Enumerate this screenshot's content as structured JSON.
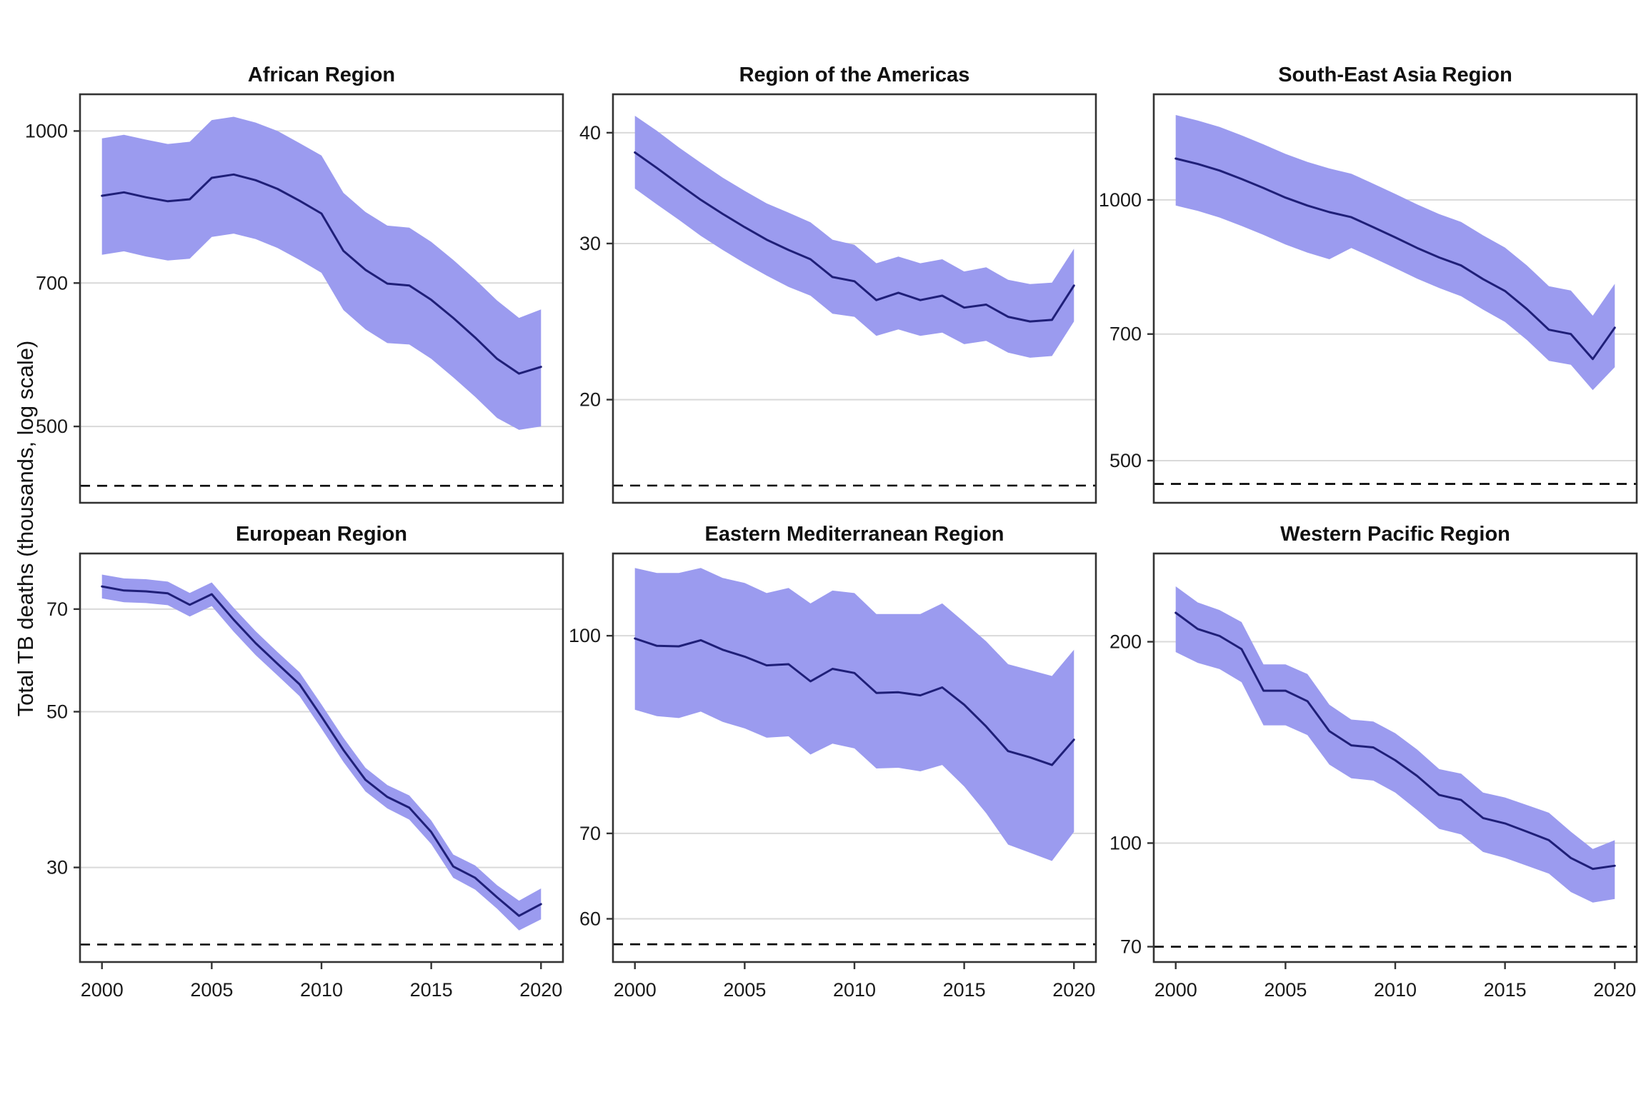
{
  "figure": {
    "y_axis_title": "Total TB deaths (thousands, log scale)",
    "colors": {
      "ribbon": "#9b9bef",
      "trend_line": "#1f1f78",
      "gridline": "#d9d9d9",
      "panel_border": "#333333",
      "target_line": "#000000",
      "tick_text": "#1a1a1a"
    }
  },
  "chart_data": [
    {
      "type": "line",
      "title": "African Region",
      "y_scale": "log10",
      "x": [
        2000,
        2001,
        2002,
        2003,
        2004,
        2005,
        2006,
        2007,
        2008,
        2009,
        2010,
        2011,
        2012,
        2013,
        2014,
        2015,
        2016,
        2017,
        2018,
        2019,
        2020
      ],
      "x_ticks": [
        2000,
        2005,
        2010,
        2015,
        2020
      ],
      "x_labels_shown": false,
      "y_ticks": [
        500,
        700,
        1000
      ],
      "ylim": [
        418,
        1090
      ],
      "target_line_value": 435,
      "series": [
        {
          "name": "central estimate",
          "values": [
            859,
            866,
            856,
            848,
            852,
            896,
            903,
            891,
            873,
            849,
            824,
            755,
            722,
            699,
            696,
            673,
            645,
            616,
            586,
            566,
            575
          ]
        },
        {
          "name": "upper uncertainty bound",
          "values": [
            983,
            991,
            980,
            970,
            975,
            1026,
            1034,
            1020,
            1000,
            972,
            944,
            865,
            827,
            801,
            797,
            771,
            739,
            706,
            672,
            645,
            658
          ]
        },
        {
          "name": "lower uncertainty bound",
          "values": [
            748,
            754,
            745,
            738,
            741,
            780,
            786,
            776,
            760,
            739,
            717,
            657,
            628,
            608,
            606,
            586,
            561,
            536,
            510,
            496,
            500
          ]
        }
      ]
    },
    {
      "type": "line",
      "title": "Region of the Americas",
      "y_scale": "log10",
      "x": [
        2000,
        2001,
        2002,
        2003,
        2004,
        2005,
        2006,
        2007,
        2008,
        2009,
        2010,
        2011,
        2012,
        2013,
        2014,
        2015,
        2016,
        2017,
        2018,
        2019,
        2020
      ],
      "x_ticks": [
        2000,
        2005,
        2010,
        2015,
        2020
      ],
      "x_labels_shown": false,
      "y_ticks": [
        20,
        30,
        40
      ],
      "ylim": [
        15.3,
        44.2
      ],
      "target_line_value": 16,
      "series": [
        {
          "name": "central estimate",
          "values": [
            38.0,
            36.5,
            35.0,
            33.6,
            32.4,
            31.3,
            30.3,
            29.5,
            28.8,
            27.5,
            27.2,
            25.9,
            26.4,
            25.9,
            26.2,
            25.4,
            25.6,
            24.8,
            24.5,
            24.6,
            26.9
          ]
        },
        {
          "name": "upper uncertainty bound",
          "values": [
            41.8,
            40.2,
            38.5,
            37.0,
            35.6,
            34.4,
            33.3,
            32.5,
            31.7,
            30.3,
            29.9,
            28.5,
            29.0,
            28.5,
            28.8,
            27.9,
            28.2,
            27.3,
            27.0,
            27.1,
            29.6
          ]
        },
        {
          "name": "lower uncertainty bound",
          "values": [
            34.6,
            33.2,
            31.9,
            30.6,
            29.5,
            28.5,
            27.6,
            26.8,
            26.2,
            25.0,
            24.8,
            23.6,
            24.0,
            23.6,
            23.8,
            23.1,
            23.3,
            22.6,
            22.3,
            22.4,
            24.5
          ]
        }
      ]
    },
    {
      "type": "line",
      "title": "South-East Asia Region",
      "y_scale": "log10",
      "x": [
        2000,
        2001,
        2002,
        2003,
        2004,
        2005,
        2006,
        2007,
        2008,
        2009,
        2010,
        2011,
        2012,
        2013,
        2014,
        2015,
        2016,
        2017,
        2018,
        2019,
        2020
      ],
      "x_ticks": [
        2000,
        2005,
        2010,
        2015,
        2020
      ],
      "x_labels_shown": false,
      "y_ticks": [
        500,
        700,
        1000
      ],
      "ylim": [
        447,
        1324
      ],
      "target_line_value": 470,
      "series": [
        {
          "name": "central estimate",
          "values": [
            1116,
            1100,
            1081,
            1057,
            1032,
            1006,
            985,
            968,
            955,
            930,
            905,
            880,
            858,
            840,
            810,
            785,
            748,
            708,
            700,
            655,
            712
          ]
        },
        {
          "name": "upper uncertainty bound",
          "values": [
            1253,
            1235,
            1214,
            1187,
            1159,
            1130,
            1106,
            1087,
            1072,
            1044,
            1016,
            988,
            963,
            943,
            910,
            881,
            840,
            795,
            786,
            735,
            800
          ]
        },
        {
          "name": "lower uncertainty bound",
          "values": [
            985,
            971,
            954,
            933,
            911,
            888,
            869,
            854,
            880,
            857,
            834,
            811,
            791,
            774,
            747,
            723,
            689,
            652,
            645,
            603,
            641
          ]
        }
      ]
    },
    {
      "type": "line",
      "title": "European Region",
      "y_scale": "log10",
      "x": [
        2000,
        2001,
        2002,
        2003,
        2004,
        2005,
        2006,
        2007,
        2008,
        2009,
        2010,
        2011,
        2012,
        2013,
        2014,
        2015,
        2016,
        2017,
        2018,
        2019,
        2020
      ],
      "x_ticks": [
        2000,
        2005,
        2010,
        2015,
        2020
      ],
      "x_labels_shown": true,
      "y_ticks": [
        30,
        50,
        70
      ],
      "ylim": [
        22.0,
        84.0
      ],
      "target_line_value": 23.3,
      "series": [
        {
          "name": "central estimate",
          "values": [
            75.4,
            74.4,
            74.2,
            73.7,
            71.0,
            73.5,
            67.6,
            62.6,
            58.5,
            54.7,
            49.2,
            44.1,
            40.0,
            37.8,
            36.5,
            33.7,
            30.1,
            29.0,
            27.2,
            25.6,
            26.6
          ]
        },
        {
          "name": "upper uncertainty bound",
          "values": [
            78.4,
            77.4,
            77.2,
            76.6,
            73.8,
            76.4,
            70.3,
            65.1,
            60.8,
            56.9,
            51.2,
            45.9,
            41.6,
            39.3,
            38.0,
            35.0,
            31.3,
            30.2,
            28.3,
            26.9,
            28.0
          ]
        },
        {
          "name": "lower uncertainty bound",
          "values": [
            72.5,
            71.6,
            71.4,
            70.9,
            68.3,
            70.7,
            65.0,
            60.2,
            56.3,
            52.6,
            47.3,
            42.4,
            38.5,
            36.4,
            35.1,
            32.4,
            29.0,
            27.9,
            26.2,
            24.4,
            25.3
          ]
        }
      ]
    },
    {
      "type": "line",
      "title": "Eastern Mediterranean Region",
      "y_scale": "log10",
      "x": [
        2000,
        2001,
        2002,
        2003,
        2004,
        2005,
        2006,
        2007,
        2008,
        2009,
        2010,
        2011,
        2012,
        2013,
        2014,
        2015,
        2016,
        2017,
        2018,
        2019,
        2020
      ],
      "x_ticks": [
        2000,
        2005,
        2010,
        2015,
        2020
      ],
      "x_labels_shown": true,
      "y_ticks": [
        60,
        70,
        100
      ],
      "ylim": [
        55.5,
        116
      ],
      "target_line_value": 57.3,
      "series": [
        {
          "name": "central estimate",
          "values": [
            99.5,
            98.2,
            98.1,
            99.2,
            97.5,
            96.3,
            94.8,
            95.0,
            92.1,
            94.2,
            93.5,
            90.2,
            90.3,
            89.8,
            91.1,
            88.3,
            84.9,
            81.2,
            80.3,
            79.2,
            82.9
          ]
        },
        {
          "name": "upper uncertainty bound",
          "values": [
            113,
            112,
            112,
            113,
            111,
            110,
            108,
            109,
            106,
            108.5,
            108,
            104,
            104,
            104,
            106,
            102.5,
            99,
            95,
            94,
            93,
            97.5
          ]
        },
        {
          "name": "lower uncertainty bound",
          "values": [
            87.5,
            86.5,
            86.2,
            87.2,
            85.6,
            84.6,
            83.2,
            83.4,
            80.7,
            82.3,
            81.6,
            78.7,
            78.8,
            78.3,
            79.2,
            76.2,
            72.6,
            68.6,
            67.6,
            66.6,
            70.2
          ]
        }
      ]
    },
    {
      "type": "line",
      "title": "Western Pacific Region",
      "y_scale": "log10",
      "x": [
        2000,
        2001,
        2002,
        2003,
        2004,
        2005,
        2006,
        2007,
        2008,
        2009,
        2010,
        2011,
        2012,
        2013,
        2014,
        2015,
        2016,
        2017,
        2018,
        2019,
        2020
      ],
      "x_ticks": [
        2000,
        2005,
        2010,
        2015,
        2020
      ],
      "x_labels_shown": true,
      "y_ticks": [
        70,
        100,
        200
      ],
      "ylim": [
        66.4,
        271
      ],
      "target_line_value": 70,
      "series": [
        {
          "name": "central estimate",
          "values": [
            221,
            209,
            204,
            195,
            169,
            169,
            163,
            147,
            140,
            139,
            133,
            126,
            118,
            116,
            109,
            107,
            104,
            101,
            95,
            91.5,
            92.5
          ]
        },
        {
          "name": "upper uncertainty bound",
          "values": [
            242,
            229,
            223,
            214,
            185,
            185,
            179,
            161,
            153,
            152,
            146,
            138,
            129,
            127,
            119,
            117,
            114,
            111,
            104,
            98,
            101
          ]
        },
        {
          "name": "lower uncertainty bound",
          "values": [
            193,
            186,
            182,
            174,
            150,
            150,
            145,
            131,
            125,
            124,
            119,
            112,
            105,
            103,
            97,
            95,
            92.5,
            90,
            84.5,
            81.5,
            82.5
          ]
        }
      ]
    }
  ]
}
